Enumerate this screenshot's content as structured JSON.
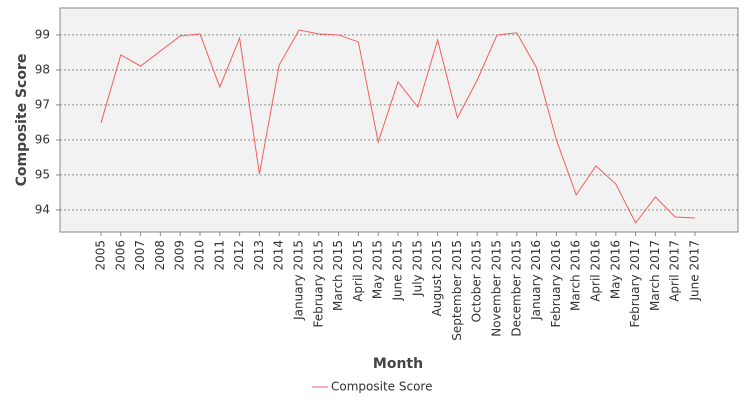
{
  "chart_data": {
    "type": "line",
    "x_label": "Month",
    "y_label": "Composite Score",
    "categories": [
      "2005",
      "2006",
      "2007",
      "2008",
      "2009",
      "2010",
      "2011",
      "2012",
      "2013",
      "2014",
      "January 2015",
      "February 2015",
      "March 2015",
      "April 2015",
      "May 2015",
      "June 2015",
      "July 2015",
      "August 2015",
      "September 2015",
      "October 2015",
      "November 2015",
      "December 2015",
      "January 2016",
      "February 2016",
      "March 2016",
      "April 2016",
      "May 2016",
      "February 2017",
      "March 2017",
      "April 2017",
      "June 2017"
    ],
    "series": [
      {
        "name": "Composite Score",
        "color": "#f0605d",
        "values": [
          96.49,
          98.43,
          98.11,
          98.54,
          98.97,
          99.03,
          97.51,
          98.91,
          95.03,
          98.14,
          99.14,
          99.03,
          99.0,
          98.8,
          95.94,
          97.66,
          96.94,
          98.86,
          96.63,
          97.71,
          99.0,
          99.06,
          98.06,
          96.0,
          94.43,
          95.26,
          94.74,
          93.63,
          94.37,
          93.8,
          93.77
        ]
      }
    ],
    "ylim": [
      93.37,
      99.77
    ],
    "yticks": [
      94,
      95,
      96,
      97,
      98,
      99
    ],
    "grid": true,
    "legend": "bottom"
  }
}
